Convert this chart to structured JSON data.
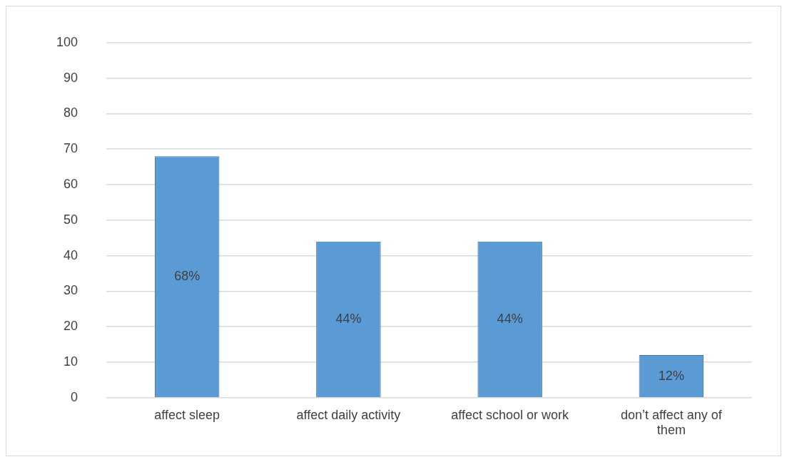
{
  "chart_data": {
    "type": "bar",
    "categories": [
      "affect sleep",
      "affect daily activity",
      "affect school or work",
      "don’t affect any of them"
    ],
    "values": [
      68,
      44,
      44,
      12
    ],
    "color": "#5b9bd5",
    "value_labels": [
      "68%",
      "44%",
      "44%",
      "12%"
    ],
    "ylim": [
      0,
      100
    ],
    "yticks": [
      0,
      10,
      20,
      30,
      40,
      50,
      60,
      70,
      80,
      90,
      100
    ],
    "grid": "y"
  }
}
